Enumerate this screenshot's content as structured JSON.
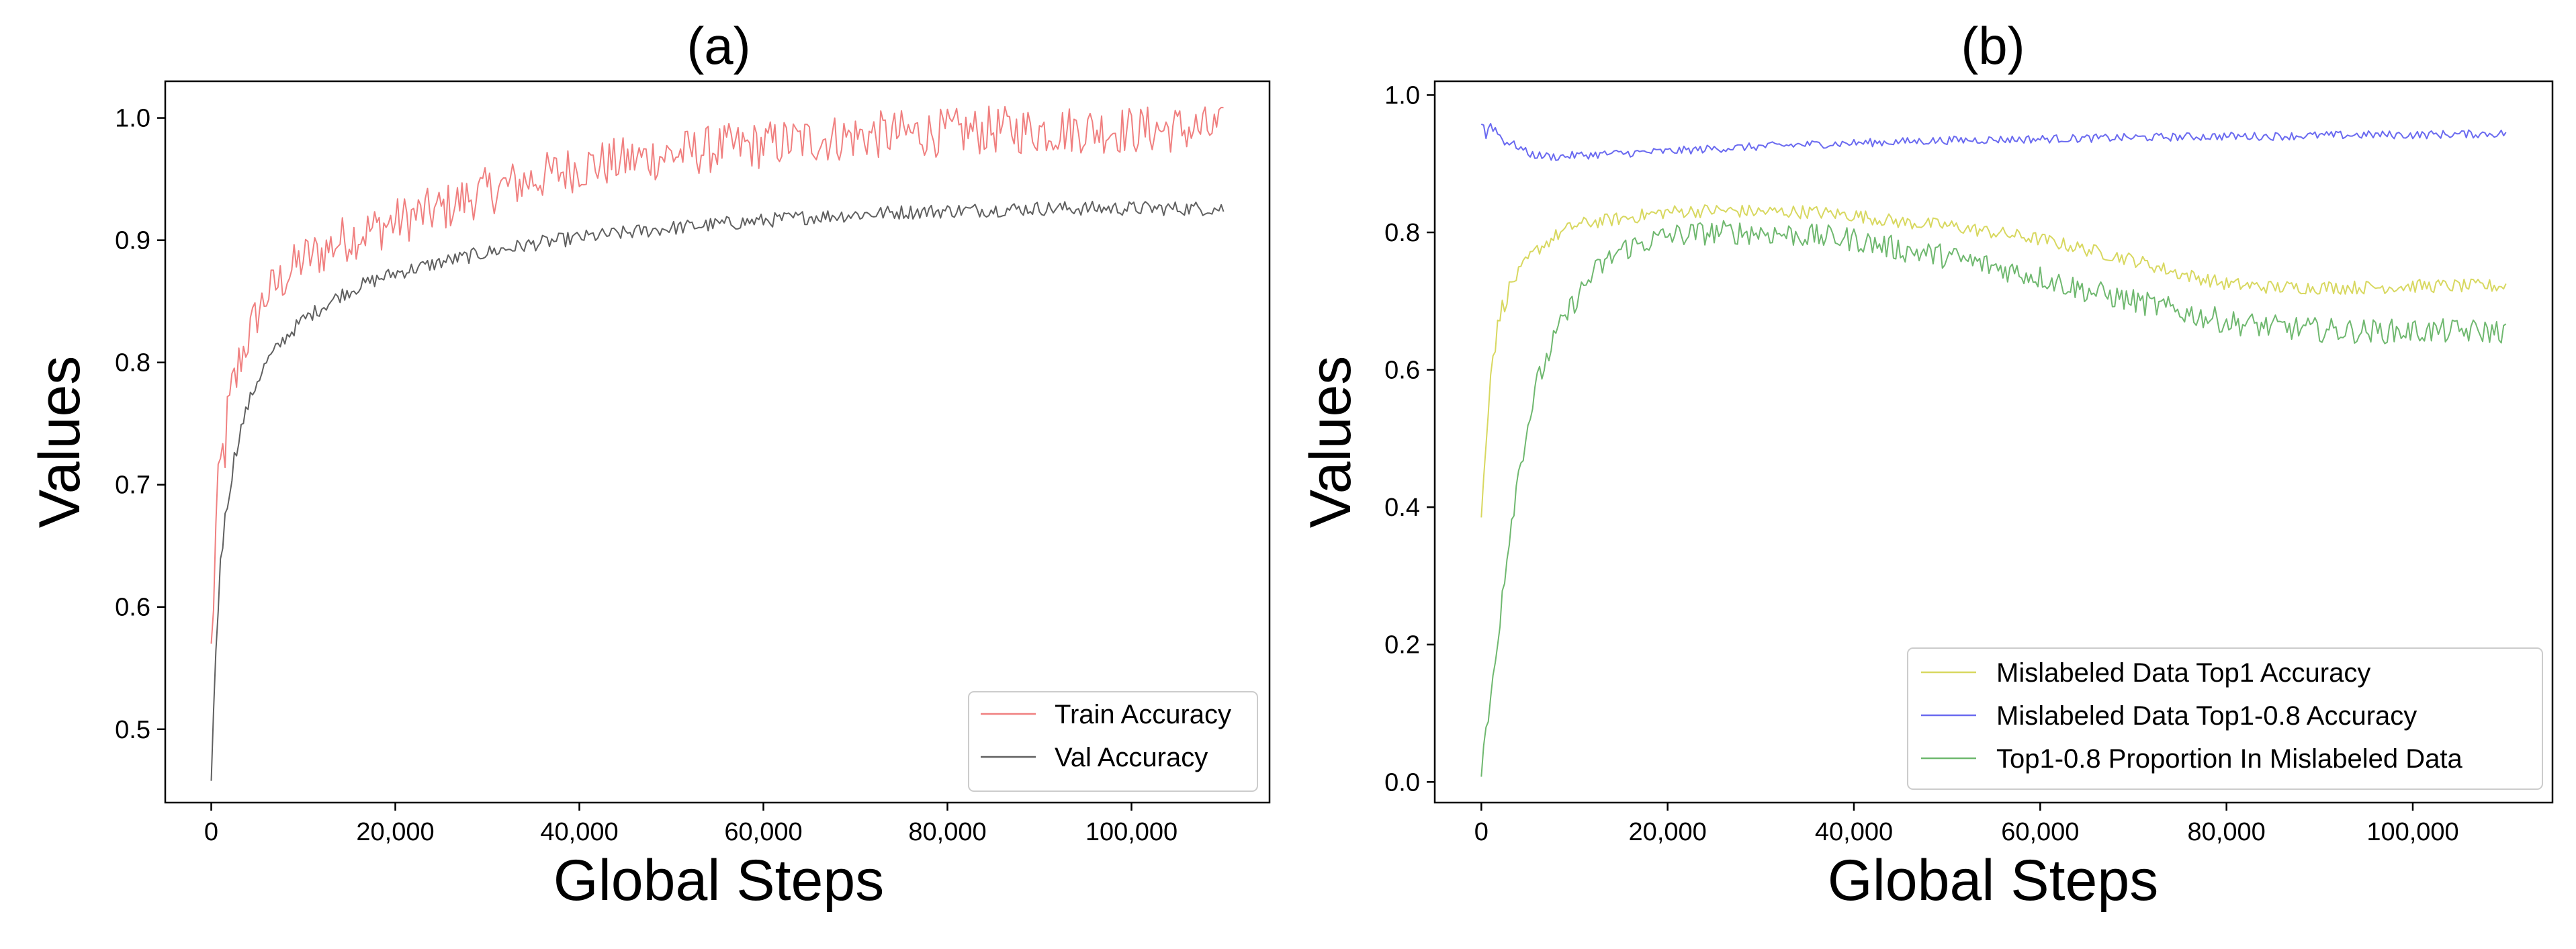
{
  "chart_data": [
    {
      "type": "line",
      "title": "(a)",
      "xlabel": "Global Steps",
      "ylabel": "Values",
      "xlim": [
        -5000,
        115000
      ],
      "ylim": [
        0.44,
        1.03
      ],
      "xticks": [
        0,
        20000,
        40000,
        60000,
        80000,
        100000
      ],
      "xtick_labels": [
        "0",
        "20,000",
        "40,000",
        "60,000",
        "80,000",
        "100,000"
      ],
      "yticks": [
        0.5,
        0.6,
        0.7,
        0.8,
        0.9,
        1.0
      ],
      "ytick_labels": [
        "0.5",
        "0.6",
        "0.7",
        "0.8",
        "0.9",
        "1.0"
      ],
      "grid": false,
      "legend_position": "lower-right",
      "series": [
        {
          "name": "Train Accuracy",
          "color": "#f08080",
          "x": [
            0,
            500,
            1000,
            2000,
            3000,
            4000,
            5000,
            6000,
            8000,
            10000,
            12000,
            14000,
            16000,
            18000,
            20000,
            22000,
            25000,
            28000,
            30000,
            35000,
            40000,
            45000,
            50000,
            55000,
            60000,
            65000,
            70000,
            75000,
            80000,
            85000,
            90000,
            95000,
            100000,
            105000,
            110000
          ],
          "values": [
            0.56,
            0.66,
            0.71,
            0.76,
            0.8,
            0.82,
            0.84,
            0.855,
            0.87,
            0.885,
            0.89,
            0.9,
            0.905,
            0.91,
            0.915,
            0.92,
            0.925,
            0.935,
            0.94,
            0.95,
            0.96,
            0.965,
            0.97,
            0.975,
            0.978,
            0.982,
            0.985,
            0.987,
            0.988,
            0.99,
            0.99,
            0.991,
            0.99,
            0.991,
            0.99
          ],
          "noise": 0.02
        },
        {
          "name": "Val Accuracy",
          "color": "#606060",
          "x": [
            0,
            500,
            1000,
            2000,
            3000,
            4000,
            5000,
            6000,
            8000,
            10000,
            12000,
            14000,
            16000,
            18000,
            20000,
            25000,
            30000,
            35000,
            40000,
            45000,
            50000,
            55000,
            60000,
            65000,
            70000,
            75000,
            80000,
            85000,
            90000,
            95000,
            100000,
            105000,
            110000
          ],
          "values": [
            0.465,
            0.56,
            0.64,
            0.7,
            0.74,
            0.765,
            0.785,
            0.8,
            0.82,
            0.835,
            0.845,
            0.855,
            0.862,
            0.868,
            0.873,
            0.882,
            0.89,
            0.897,
            0.902,
            0.906,
            0.91,
            0.913,
            0.916,
            0.919,
            0.921,
            0.923,
            0.924,
            0.925,
            0.926,
            0.926,
            0.926,
            0.926,
            0.926
          ],
          "noise": 0.006
        }
      ]
    },
    {
      "type": "line",
      "title": "(b)",
      "xlabel": "Global Steps",
      "ylabel": "Values",
      "xlim": [
        -5000,
        115000
      ],
      "ylim": [
        -0.03,
        1.02
      ],
      "xticks": [
        0,
        20000,
        40000,
        60000,
        80000,
        100000
      ],
      "xtick_labels": [
        "0",
        "20,000",
        "40,000",
        "60,000",
        "80,000",
        "100,000"
      ],
      "yticks": [
        0.0,
        0.2,
        0.4,
        0.6,
        0.8,
        1.0
      ],
      "ytick_labels": [
        "0.0",
        "0.2",
        "0.4",
        "0.6",
        "0.8",
        "1.0"
      ],
      "grid": false,
      "legend_position": "lower-right",
      "series": [
        {
          "name": "Mislabeled Data Top1 Accuracy",
          "color": "#d8d860",
          "x": [
            0,
            500,
            1000,
            2000,
            3000,
            4000,
            5000,
            6000,
            8000,
            10000,
            12000,
            15000,
            20000,
            25000,
            30000,
            35000,
            40000,
            45000,
            50000,
            55000,
            60000,
            65000,
            70000,
            75000,
            80000,
            85000,
            90000,
            95000,
            100000,
            105000,
            110000
          ],
          "values": [
            0.38,
            0.5,
            0.6,
            0.68,
            0.72,
            0.74,
            0.76,
            0.775,
            0.795,
            0.81,
            0.815,
            0.82,
            0.83,
            0.832,
            0.83,
            0.83,
            0.825,
            0.815,
            0.81,
            0.8,
            0.79,
            0.775,
            0.76,
            0.74,
            0.725,
            0.72,
            0.72,
            0.72,
            0.722,
            0.722,
            0.722
          ],
          "noise": 0.01
        },
        {
          "name": "Mislabeled Data Top1-0.8 Accuracy",
          "color": "#6a6af0",
          "x": [
            0,
            500,
            1000,
            2000,
            3000,
            4000,
            5000,
            6000,
            8000,
            10000,
            15000,
            20000,
            25000,
            30000,
            35000,
            40000,
            45000,
            50000,
            55000,
            60000,
            65000,
            70000,
            75000,
            80000,
            85000,
            90000,
            95000,
            100000,
            105000,
            110000
          ],
          "values": [
            0.965,
            0.94,
            0.96,
            0.94,
            0.93,
            0.925,
            0.915,
            0.912,
            0.91,
            0.912,
            0.915,
            0.918,
            0.922,
            0.925,
            0.928,
            0.93,
            0.932,
            0.934,
            0.935,
            0.936,
            0.937,
            0.938,
            0.939,
            0.94,
            0.94,
            0.941,
            0.942,
            0.942,
            0.943,
            0.944
          ],
          "noise": 0.006
        },
        {
          "name": "Top1-0.8 Proportion In Mislabeled Data",
          "color": "#6fb86f",
          "x": [
            0,
            500,
            1000,
            2000,
            3000,
            4000,
            5000,
            6000,
            8000,
            10000,
            12000,
            15000,
            20000,
            25000,
            30000,
            35000,
            40000,
            45000,
            50000,
            55000,
            60000,
            65000,
            70000,
            75000,
            80000,
            85000,
            90000,
            95000,
            100000,
            105000,
            110000
          ],
          "values": [
            0.02,
            0.06,
            0.12,
            0.25,
            0.36,
            0.45,
            0.52,
            0.58,
            0.65,
            0.7,
            0.74,
            0.775,
            0.795,
            0.8,
            0.8,
            0.795,
            0.79,
            0.775,
            0.765,
            0.75,
            0.735,
            0.715,
            0.7,
            0.685,
            0.67,
            0.662,
            0.658,
            0.656,
            0.656,
            0.656,
            0.656
          ],
          "noise": 0.018
        }
      ]
    }
  ]
}
